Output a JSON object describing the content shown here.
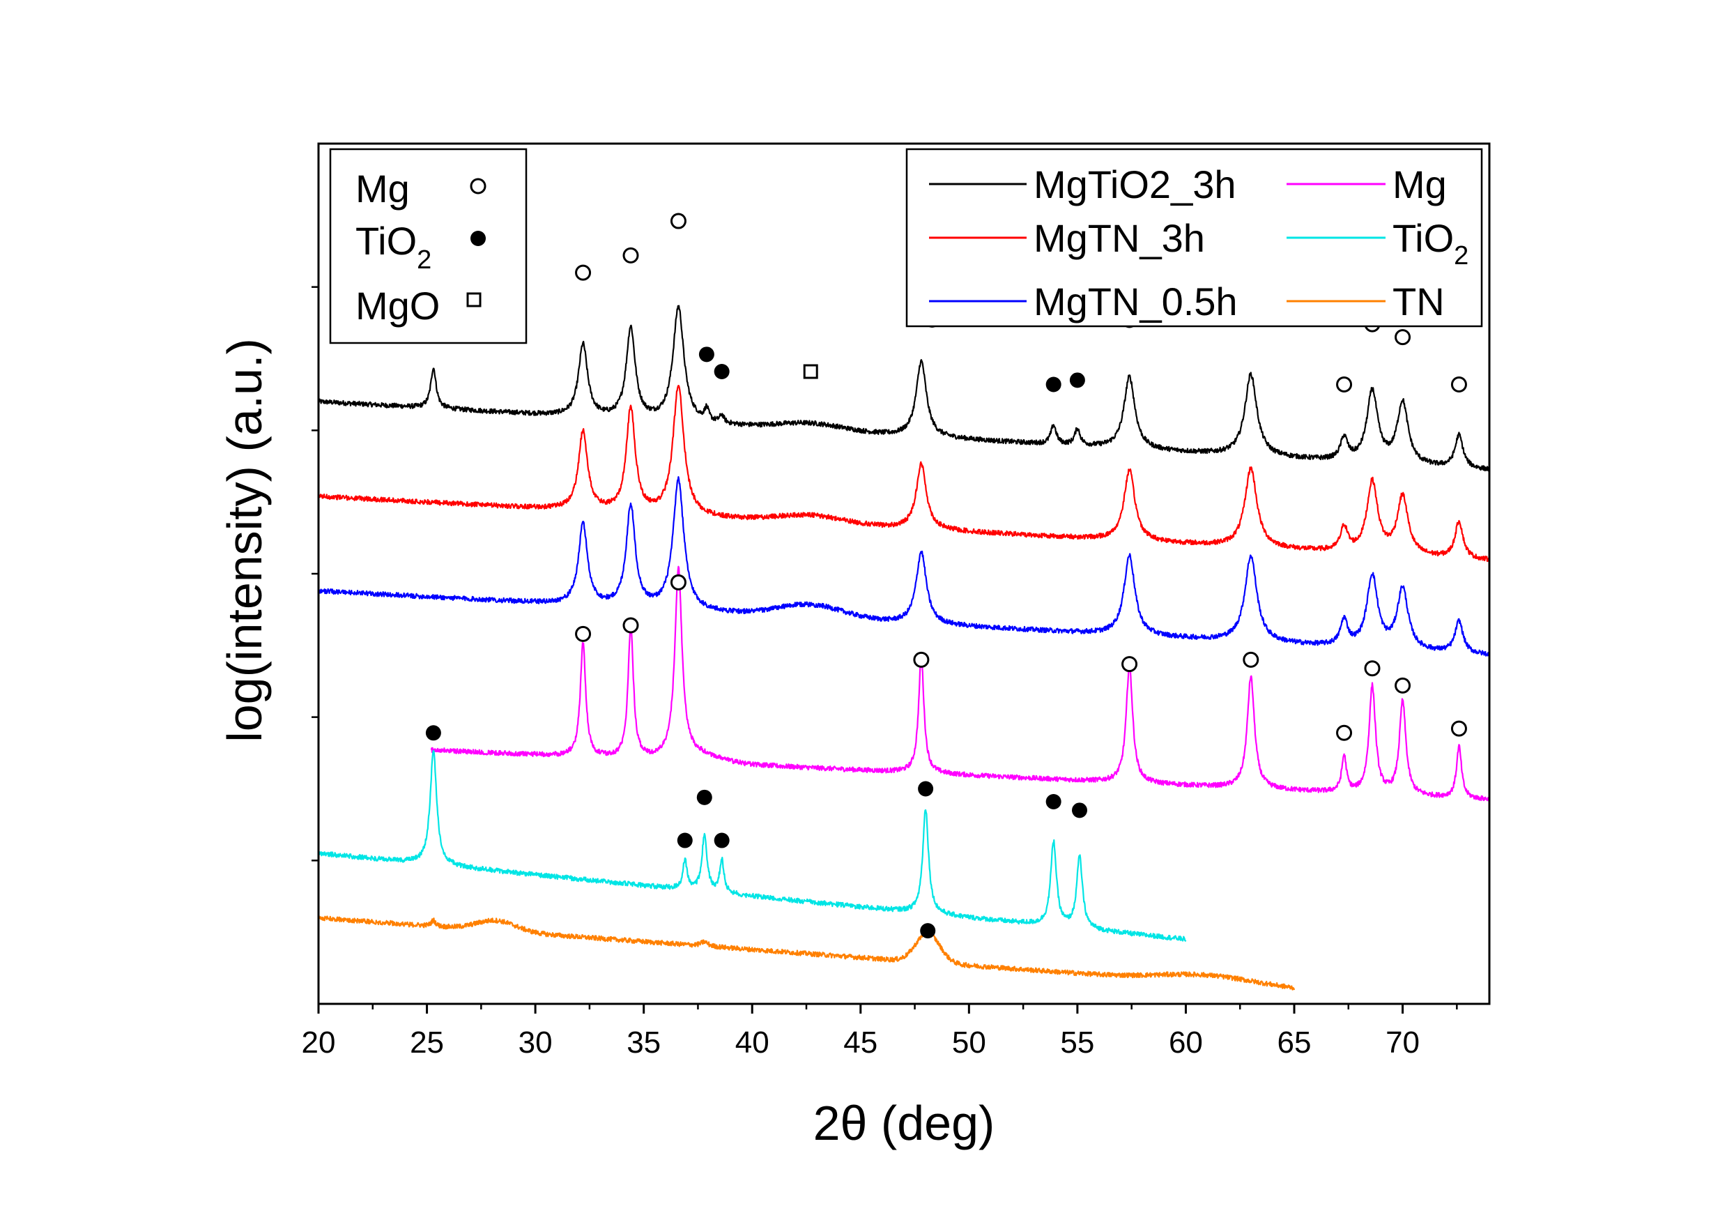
{
  "chart_data": {
    "type": "line",
    "xlabel": "2θ (deg)",
    "ylabel": "log(intensity) (a.u.)",
    "xlim": [
      20,
      74
    ],
    "ylim": [
      0,
      100
    ],
    "xticks": [
      20,
      25,
      30,
      35,
      40,
      45,
      50,
      55,
      60,
      65,
      70
    ],
    "y_tick_labels": false,
    "legend": {
      "placement": "top-right",
      "entries": [
        {
          "name": "MgTiO2_3h",
          "color": "#000000"
        },
        {
          "name": "MgTN_3h",
          "color": "#ff0000"
        },
        {
          "name": "MgTN_0.5h",
          "color": "#0000ff"
        },
        {
          "name": "Mg",
          "color": "#ff00ff"
        },
        {
          "name": "TiO",
          "sub": "2",
          "color": "#00e5e5"
        },
        {
          "name": "TN",
          "color": "#ff8000"
        }
      ]
    },
    "phase_legend": {
      "placement": "top-left",
      "entries": [
        {
          "name": "Mg",
          "marker": "open-circle"
        },
        {
          "name": "TiO",
          "sub": "2",
          "marker": "filled-circle"
        },
        {
          "name": "MgO",
          "marker": "open-square"
        }
      ]
    },
    "series": [
      {
        "name": "MgTiO2_3h",
        "color": "#000000",
        "width": 0.55,
        "x_range": [
          20,
          74
        ],
        "base_start": 70,
        "base_end": 62,
        "bumps": [
          [
            42.7,
            0.8,
            1.5
          ]
        ],
        "peaks": [
          [
            25.3,
            4.7,
            0.15
          ],
          [
            32.2,
            8.4,
            0.25
          ],
          [
            34.4,
            10.6,
            0.25
          ],
          [
            36.6,
            13.4,
            0.3
          ],
          [
            37.9,
            1.4,
            0.12
          ],
          [
            38.6,
            0.9,
            0.12
          ],
          [
            47.8,
            8.8,
            0.28
          ],
          [
            53.9,
            2.2,
            0.15
          ],
          [
            55.0,
            1.9,
            0.15
          ],
          [
            57.4,
            8.4,
            0.3
          ],
          [
            63.0,
            9.5,
            0.33
          ],
          [
            67.3,
            2.6,
            0.2
          ],
          [
            68.6,
            8.3,
            0.3
          ],
          [
            70.0,
            7.2,
            0.3
          ],
          [
            72.6,
            3.8,
            0.22
          ]
        ]
      },
      {
        "name": "MgTN_3h",
        "color": "#ff0000",
        "width": 0.55,
        "x_range": [
          20,
          74
        ],
        "base_start": 59,
        "base_end": 51.5,
        "bumps": [
          [
            42.7,
            0.9,
            1.5
          ]
        ],
        "peaks": [
          [
            32.2,
            9.2,
            0.25
          ],
          [
            34.4,
            12.1,
            0.25
          ],
          [
            36.6,
            15.1,
            0.3
          ],
          [
            47.8,
            7.6,
            0.28
          ],
          [
            57.4,
            8.2,
            0.3
          ],
          [
            63.0,
            9.2,
            0.33
          ],
          [
            67.3,
            2.8,
            0.2
          ],
          [
            68.6,
            8.3,
            0.3
          ],
          [
            70.0,
            6.8,
            0.3
          ],
          [
            72.6,
            4.3,
            0.22
          ]
        ]
      },
      {
        "name": "MgTN_0.5h",
        "color": "#0000ff",
        "width": 0.55,
        "x_range": [
          20,
          74
        ],
        "base_start": 48,
        "base_end": 40.5,
        "bumps": [
          [
            42.7,
            1.5,
            1.5
          ]
        ],
        "peaks": [
          [
            32.2,
            9.4,
            0.25
          ],
          [
            34.4,
            11.8,
            0.25
          ],
          [
            36.6,
            15.1,
            0.3
          ],
          [
            47.8,
            8.4,
            0.28
          ],
          [
            57.4,
            9.3,
            0.3
          ],
          [
            63.0,
            10.0,
            0.33
          ],
          [
            67.3,
            3.0,
            0.2
          ],
          [
            68.6,
            8.4,
            0.3
          ],
          [
            70.0,
            7.1,
            0.3
          ],
          [
            72.6,
            3.7,
            0.22
          ]
        ]
      },
      {
        "name": "Mg",
        "color": "#ff00ff",
        "width": 0.55,
        "x_range": [
          25.2,
          74
        ],
        "base_start": 29.5,
        "base_end": 23.7,
        "bumps": [
          [
            37.5,
            0.8,
            1.0
          ]
        ],
        "peaks": [
          [
            32.2,
            13.2,
            0.15
          ],
          [
            34.4,
            15.4,
            0.15
          ],
          [
            36.6,
            21.9,
            0.2
          ],
          [
            47.8,
            13.4,
            0.15
          ],
          [
            57.4,
            13.7,
            0.18
          ],
          [
            63.0,
            13.0,
            0.2
          ],
          [
            67.3,
            4.2,
            0.13
          ],
          [
            68.6,
            12.5,
            0.18
          ],
          [
            70.0,
            10.9,
            0.18
          ],
          [
            72.6,
            6.0,
            0.14
          ]
        ]
      },
      {
        "name": "TiO2",
        "sub": "2",
        "color": "#00e5e5",
        "width": 0.55,
        "x_range": [
          20,
          60
        ],
        "base_start": 17.5,
        "base_end": 7.5,
        "bumps": [],
        "peaks": [
          [
            25.3,
            13.2,
            0.18
          ],
          [
            36.9,
            3.4,
            0.12
          ],
          [
            37.8,
            6.6,
            0.14
          ],
          [
            38.6,
            3.8,
            0.12
          ],
          [
            48.0,
            12.2,
            0.16
          ],
          [
            53.9,
            9.8,
            0.16
          ],
          [
            55.1,
            8.3,
            0.16
          ]
        ]
      },
      {
        "name": "TN",
        "color": "#ff8000",
        "width": 0.55,
        "x_range": [
          20,
          65
        ],
        "base_start": 10,
        "base_end": 1.7,
        "bumps": [
          [
            28.2,
            1.2,
            0.9
          ],
          [
            48.1,
            3.4,
            0.55
          ],
          [
            61.0,
            0.9,
            2.2
          ]
        ],
        "peaks": [
          [
            25.3,
            0.7,
            0.12
          ],
          [
            37.8,
            0.5,
            0.2
          ]
        ]
      }
    ],
    "markers": [
      {
        "type": "filled-circle",
        "x": 25.3,
        "y": 81
      },
      {
        "type": "open-circle",
        "x": 32.2,
        "y": 85
      },
      {
        "type": "open-circle",
        "x": 34.4,
        "y": 87
      },
      {
        "type": "open-circle",
        "x": 36.6,
        "y": 91
      },
      {
        "type": "filled-circle",
        "x": 37.9,
        "y": 75.5
      },
      {
        "type": "filled-circle",
        "x": 38.6,
        "y": 73.5
      },
      {
        "type": "open-square",
        "x": 42.7,
        "y": 73.5
      },
      {
        "type": "open-circle",
        "x": 47.8,
        "y": 81.5
      },
      {
        "type": "filled-circle",
        "x": 48.3,
        "y": 79.5
      },
      {
        "type": "filled-circle",
        "x": 53.9,
        "y": 72
      },
      {
        "type": "filled-circle",
        "x": 55.0,
        "y": 72.5
      },
      {
        "type": "open-circle",
        "x": 57.4,
        "y": 79.5
      },
      {
        "type": "open-circle",
        "x": 63.0,
        "y": 80.5
      },
      {
        "type": "open-circle",
        "x": 67.3,
        "y": 72
      },
      {
        "type": "open-circle",
        "x": 68.6,
        "y": 79
      },
      {
        "type": "open-circle",
        "x": 70.0,
        "y": 77.5
      },
      {
        "type": "open-circle",
        "x": 72.6,
        "y": 72
      },
      {
        "type": "open-circle",
        "x": 32.2,
        "y": 43
      },
      {
        "type": "open-circle",
        "x": 34.4,
        "y": 44
      },
      {
        "type": "open-circle",
        "x": 36.6,
        "y": 49
      },
      {
        "type": "open-circle",
        "x": 47.8,
        "y": 40
      },
      {
        "type": "open-circle",
        "x": 57.4,
        "y": 39.5
      },
      {
        "type": "open-circle",
        "x": 63.0,
        "y": 40
      },
      {
        "type": "open-circle",
        "x": 67.3,
        "y": 31.5
      },
      {
        "type": "open-circle",
        "x": 68.6,
        "y": 39
      },
      {
        "type": "open-circle",
        "x": 70.0,
        "y": 37
      },
      {
        "type": "open-circle",
        "x": 72.6,
        "y": 32
      },
      {
        "type": "filled-circle",
        "x": 25.3,
        "y": 31.5
      },
      {
        "type": "filled-circle",
        "x": 36.9,
        "y": 19
      },
      {
        "type": "filled-circle",
        "x": 37.8,
        "y": 24
      },
      {
        "type": "filled-circle",
        "x": 38.6,
        "y": 19
      },
      {
        "type": "filled-circle",
        "x": 48.0,
        "y": 25
      },
      {
        "type": "filled-circle",
        "x": 53.9,
        "y": 23.5
      },
      {
        "type": "filled-circle",
        "x": 55.1,
        "y": 22.5
      },
      {
        "type": "filled-circle",
        "x": 48.1,
        "y": 8.5
      }
    ]
  }
}
